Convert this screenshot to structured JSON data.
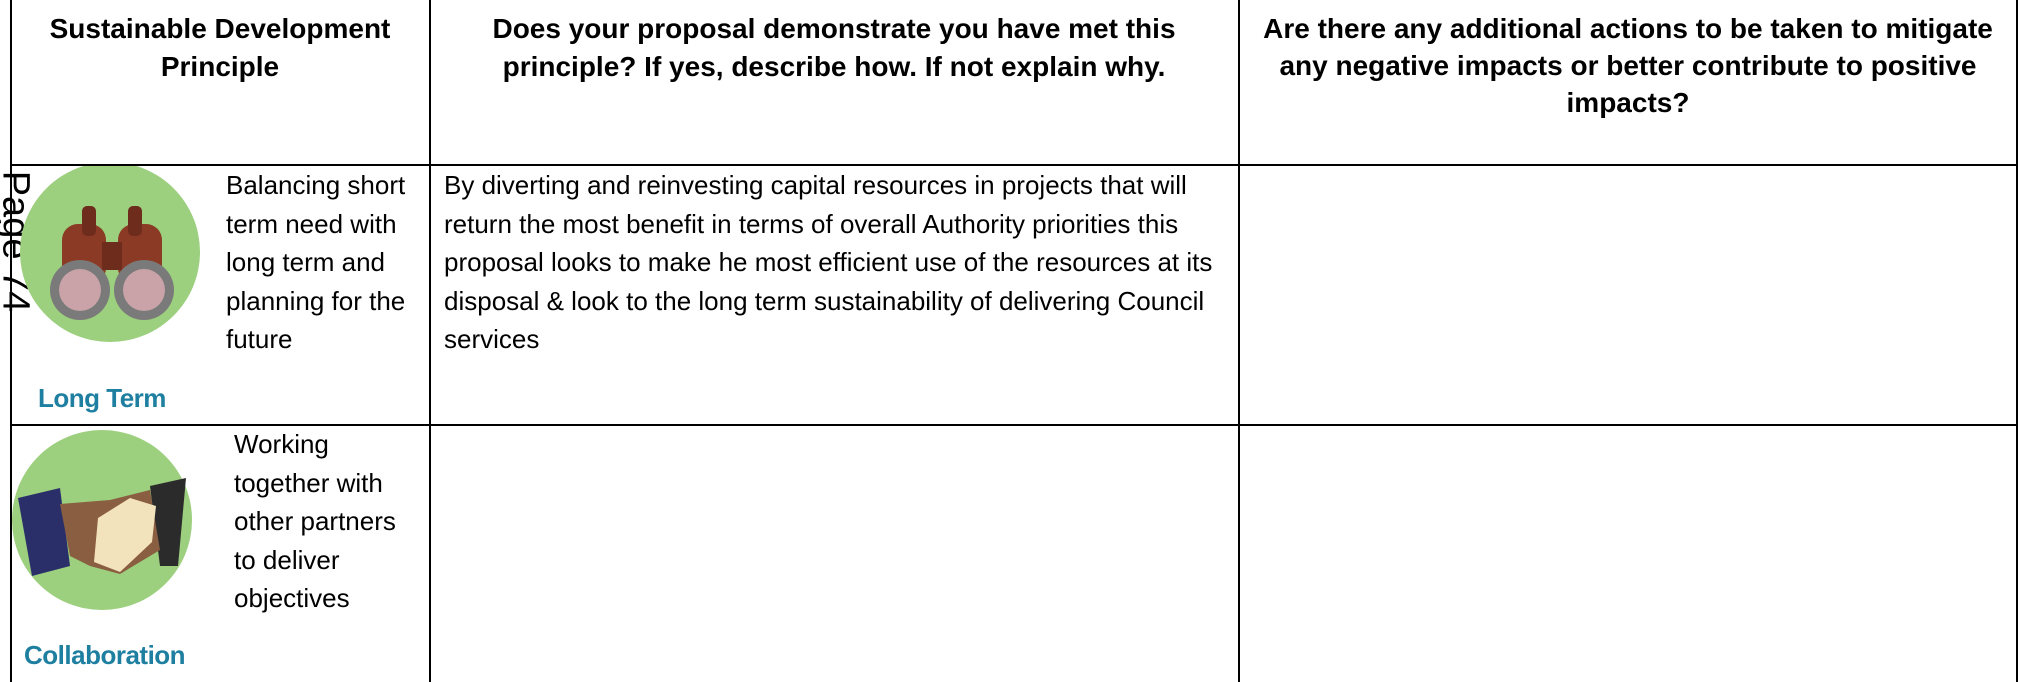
{
  "page_label": "Page 74",
  "table": {
    "headers": [
      "Sustainable Development Principle",
      "Does your proposal demonstrate you have met this principle?  If yes, describe how.  If not explain why.",
      "Are there any additional actions to be taken to mitigate any negative impacts or better contribute to positive impacts?"
    ],
    "rows": [
      {
        "icon_label": "Long Term",
        "principle": "Balancing short term need with long term and planning for the future",
        "response": "By diverting and reinvesting capital resources in projects that will return the most benefit in terms of overall Authority priorities this proposal looks to make he most efficient use of the resources at its disposal & look to the long term sustainability of delivering Council services",
        "actions": ""
      },
      {
        "icon_label": "Collaboration",
        "principle": "Working together with other partners to deliver objectives",
        "response": "",
        "actions": ""
      }
    ]
  }
}
